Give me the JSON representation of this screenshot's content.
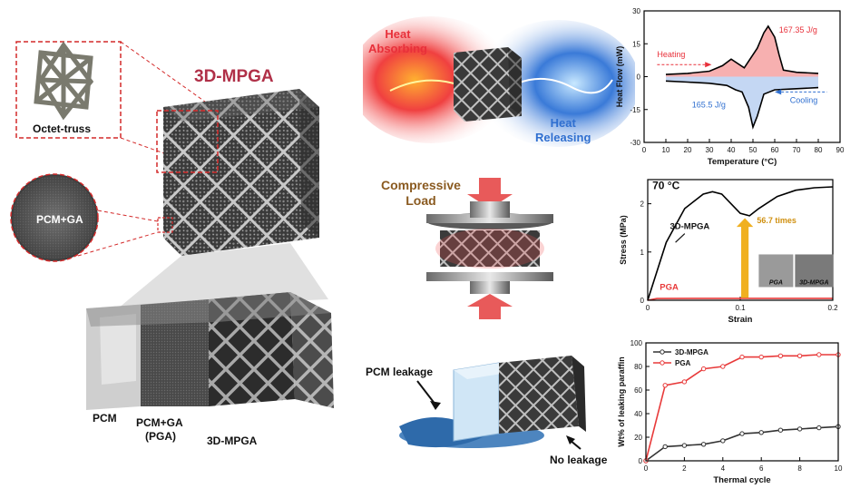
{
  "left_panel": {
    "title": "3D-MPGA",
    "unit_cell_label": "Octet-truss",
    "sem_label": "PCM+GA",
    "bottom_labels": {
      "pcm": "PCM",
      "pga_line1": "PCM+GA",
      "pga_line2": "(PGA)",
      "mpga": "3D-MPGA"
    }
  },
  "middle_panel": {
    "heat_absorbing": [
      "Heat",
      "Absorbing"
    ],
    "heat_releasing": [
      "Heat",
      "Releasing"
    ],
    "compressive_load": [
      "Compressive",
      "Load"
    ],
    "pcm_leakage": "PCM leakage",
    "no_leakage": "No leakage"
  },
  "colors": {
    "title_red": "#b03048",
    "heat_red": "#e8303a",
    "heat_blue": "#2f6fd0",
    "load_brown": "#8a5a20",
    "series_black": "#333333",
    "series_red": "#e83a3a",
    "arrow_yellow": "#f0b020"
  },
  "chart_data": [
    {
      "type": "line",
      "title": "",
      "xlabel": "Temperature (°C)",
      "ylabel": "Heat Flow (mW)",
      "xlim": [
        0,
        90
      ],
      "ylim": [
        -30,
        30
      ],
      "xticks": [
        0,
        10,
        20,
        30,
        40,
        50,
        60,
        70,
        80,
        90
      ],
      "yticks": [
        -30,
        -15,
        0,
        15,
        30
      ],
      "annotations": {
        "heating": "Heating",
        "cooling": "Cooling",
        "melting_enthalpy": "167.35 J/g",
        "crystallization_enthalpy": "165.5 J/g"
      },
      "series": [
        {
          "color": "#000000",
          "x": [
            10,
            20,
            30,
            36,
            40,
            46,
            52,
            55,
            57,
            60,
            62,
            64,
            70,
            80
          ],
          "values": [
            1,
            1.5,
            2.5,
            5,
            8,
            4,
            13,
            20,
            23,
            18,
            10,
            3,
            2,
            1.5
          ]
        },
        {
          "color": "#000000",
          "x": [
            10,
            20,
            30,
            38,
            42,
            45,
            48,
            50,
            52,
            55,
            60,
            70,
            80
          ],
          "values": [
            -2,
            -2.5,
            -3,
            -4,
            -6,
            -7,
            -14,
            -23,
            -18,
            -8,
            -6,
            -5.5,
            -5
          ]
        }
      ]
    },
    {
      "type": "line",
      "title": "70 °C",
      "xlabel": "Strain",
      "ylabel": "Stress (MPa)",
      "xlim": [
        0,
        0.2
      ],
      "ylim": [
        0,
        2.5
      ],
      "xticks": [
        0.0,
        0.1,
        0.2
      ],
      "yticks": [
        0,
        1,
        2
      ],
      "annotations": {
        "fold": "56.7 times",
        "inset_left": "PGA",
        "inset_right": "3D-MPGA"
      },
      "series": [
        {
          "name": "3D-MPGA",
          "color": "#000000",
          "x": [
            0,
            0.02,
            0.04,
            0.06,
            0.07,
            0.08,
            0.09,
            0.1,
            0.11,
            0.12,
            0.14,
            0.16,
            0.18,
            0.2
          ],
          "values": [
            0,
            1.2,
            1.9,
            2.2,
            2.25,
            2.2,
            2.0,
            1.8,
            1.75,
            1.9,
            2.15,
            2.28,
            2.33,
            2.35
          ]
        },
        {
          "name": "PGA",
          "color": "#e83a3a",
          "x": [
            0,
            0.01,
            0.05,
            0.1,
            0.15,
            0.2
          ],
          "values": [
            0,
            0.035,
            0.04,
            0.04,
            0.04,
            0.04
          ]
        }
      ]
    },
    {
      "type": "line",
      "title": "",
      "xlabel": "Thermal cycle",
      "ylabel": "Wt% of leaking paraffin",
      "xlim": [
        0,
        10
      ],
      "ylim": [
        0,
        100
      ],
      "xticks": [
        0,
        2,
        4,
        6,
        8,
        10
      ],
      "yticks": [
        0,
        20,
        40,
        60,
        80,
        100
      ],
      "legend": "top-left",
      "series": [
        {
          "name": "3D-MPGA",
          "color": "#333333",
          "x": [
            0,
            1,
            2,
            3,
            4,
            5,
            6,
            7,
            8,
            9,
            10
          ],
          "values": [
            0,
            12,
            13,
            14,
            17,
            23,
            24,
            26,
            27,
            28,
            29
          ]
        },
        {
          "name": "PGA",
          "color": "#e83a3a",
          "x": [
            0,
            1,
            2,
            3,
            4,
            5,
            6,
            7,
            8,
            9,
            10
          ],
          "values": [
            0,
            64,
            67,
            78,
            80,
            88,
            88,
            89,
            89,
            90,
            90
          ]
        }
      ]
    }
  ]
}
